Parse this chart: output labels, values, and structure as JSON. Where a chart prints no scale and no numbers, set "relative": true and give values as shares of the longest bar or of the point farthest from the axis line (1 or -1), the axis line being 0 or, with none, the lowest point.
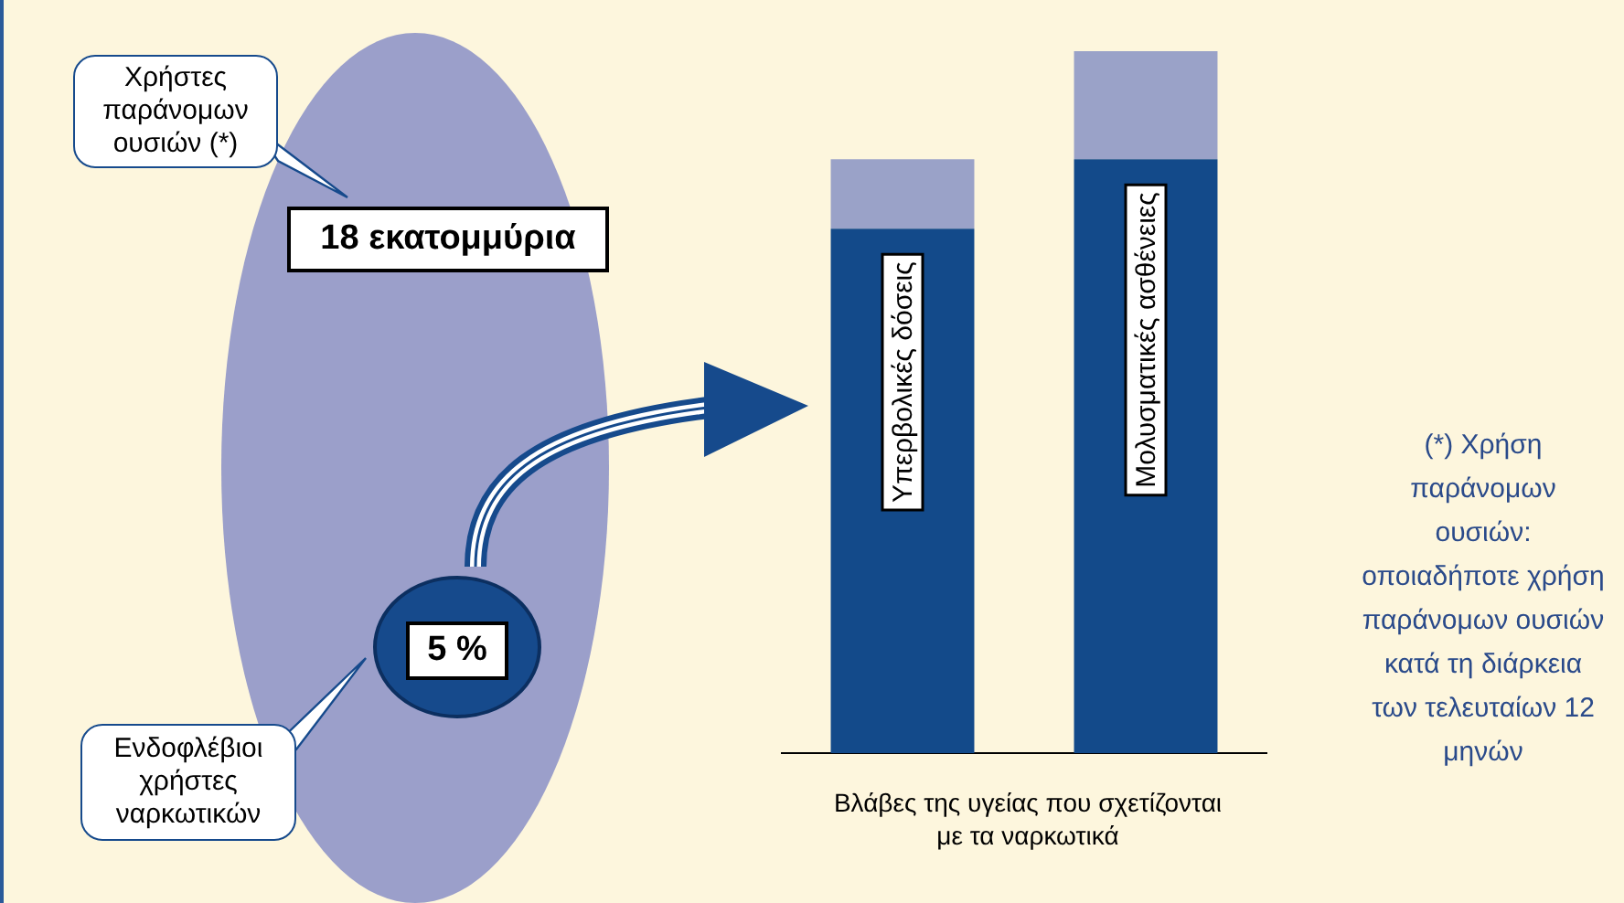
{
  "chart_data": {
    "type": "bar",
    "stacked": true,
    "relative": true,
    "legend": false,
    "grid": false,
    "categories": [
      "Υπερβολικές δόσεις",
      "Μολυσματικές ασθένειες"
    ],
    "series": [
      {
        "color": "#134a8a",
        "values": [
          0.747,
          0.846
        ]
      },
      {
        "color": "#9aa2c8",
        "values": [
          0.099,
          0.154
        ]
      }
    ],
    "xlabel": "Βλάβες της υγείας που σχετίζονται με τα ναρκωτικά",
    "annotations": [
      "Χρήστες παράνομων ουσιών (*)",
      "18 εκατομμύρια",
      "5 %",
      "Ενδοφλέβιοι χρήστες ναρκωτικών",
      "(*) Χρήση παράνομων ουσιών: οποιαδήποτε χρήση παράνομων ουσιών κατά τη διάρκεια των τελευταίων 12 μηνών"
    ]
  }
}
